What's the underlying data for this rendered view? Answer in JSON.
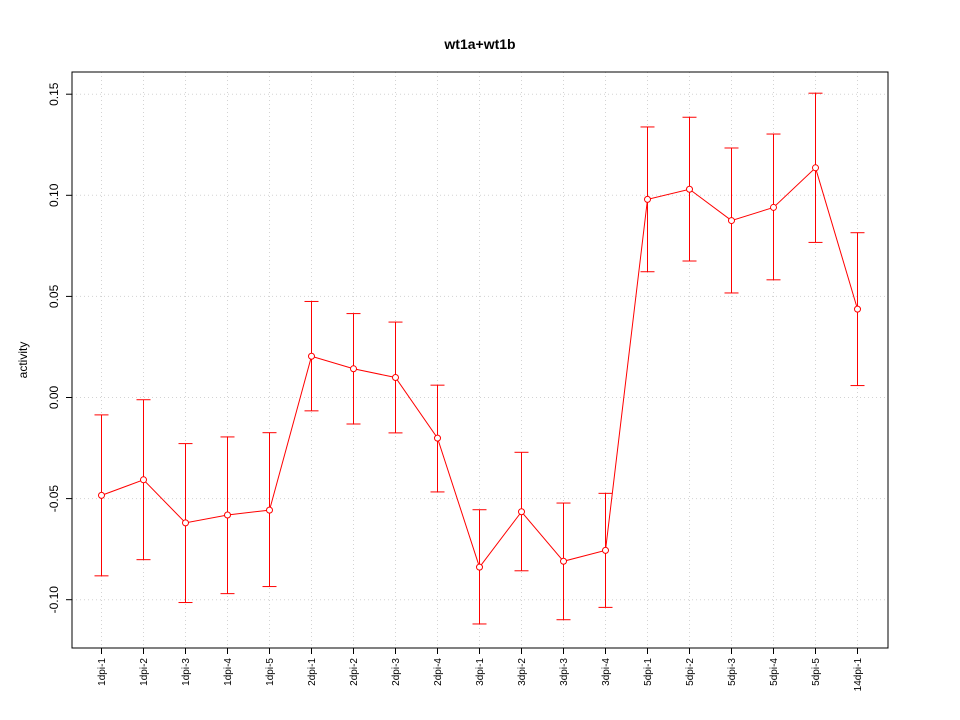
{
  "chart_data": {
    "type": "line",
    "title": "wt1a+wt1b",
    "xlabel": "",
    "ylabel": "activity",
    "categories": [
      "1dpi-1",
      "1dpi-2",
      "1dpi-3",
      "1dpi-4",
      "1dpi-5",
      "2dpi-1",
      "2dpi-2",
      "2dpi-3",
      "2dpi-4",
      "3dpi-1",
      "3dpi-2",
      "3dpi-3",
      "3dpi-4",
      "5dpi-1",
      "5dpi-2",
      "5dpi-3",
      "5dpi-4",
      "5dpi-5",
      "14dpi-1"
    ],
    "series": [
      {
        "name": "",
        "color": "#ff0000",
        "values": [
          -0.0484,
          -0.0407,
          -0.062,
          -0.0581,
          -0.0557,
          0.0204,
          0.0142,
          0.0099,
          -0.0201,
          -0.0839,
          -0.0565,
          -0.081,
          -0.0756,
          0.098,
          0.103,
          0.0875,
          0.094,
          0.1136,
          0.0437
        ],
        "lower": [
          -0.0882,
          -0.0802,
          -0.1014,
          -0.097,
          -0.0935,
          -0.0066,
          -0.0131,
          -0.0175,
          -0.0467,
          -0.112,
          -0.0857,
          -0.1099,
          -0.1038,
          0.0622,
          0.0675,
          0.0517,
          0.0582,
          0.0767,
          0.0059
        ],
        "upper": [
          -0.0086,
          -0.0011,
          -0.0228,
          -0.0195,
          -0.0174,
          0.0475,
          0.0415,
          0.0373,
          0.0061,
          -0.0555,
          -0.0271,
          -0.0522,
          -0.0474,
          0.1338,
          0.1386,
          0.1234,
          0.1303,
          0.1505,
          0.0815
        ]
      }
    ],
    "yticks": [
      "-0.10",
      "-0.05",
      "0.00",
      "0.05",
      "0.10",
      "0.15"
    ],
    "ylim": [
      -0.1235,
      0.162
    ],
    "grid": true,
    "legend": "none"
  }
}
